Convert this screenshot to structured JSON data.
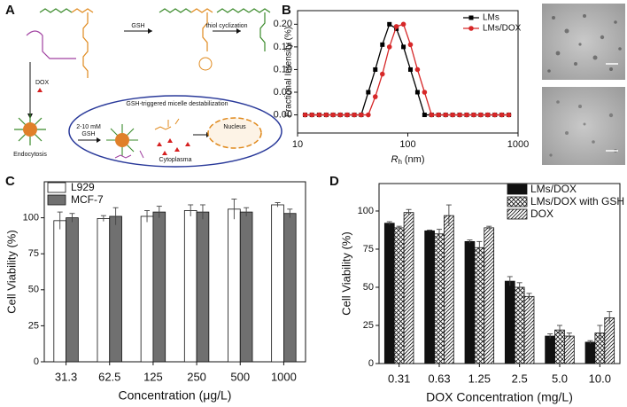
{
  "panel_labels": [
    "A",
    "B",
    "C",
    "D"
  ],
  "diagram": {
    "arrow_labels": [
      "GSH",
      "thiol cyclization"
    ],
    "drug": "DOX",
    "uptake": "Endocytosis",
    "oval_title": "GSH-triggered micelle destabilization",
    "trigger": [
      "2-10 mM",
      "GSH"
    ],
    "compartment": "Cytoplasma",
    "organelle": "Nucleus"
  },
  "chart_data": [
    {
      "type": "line",
      "x_label": "R",
      "x_label_subscript": "h",
      "x_label_unit": "(nm)",
      "y_label": "Fractional Intensity (%)",
      "x_scale": "log",
      "x": [
        11.7,
        13.5,
        15.7,
        18.2,
        21.0,
        24.4,
        28.2,
        32.7,
        37.8,
        43.8,
        50.7,
        58.8,
        68.1,
        78.8,
        91.3,
        105.7,
        122.4,
        141.8,
        164.2,
        190.1,
        220.2,
        255.0,
        295.3,
        342.0,
        396.1,
        458.7,
        531.2,
        615.1,
        712.4,
        825.0
      ],
      "xlim": [
        10,
        1000
      ],
      "xticks": [
        10,
        100,
        1000
      ],
      "ylim": [
        -0.04,
        0.23
      ],
      "yticks": [
        {
          "value": 0,
          "label": "0.00"
        },
        {
          "value": 0.05,
          "label": "0.05"
        },
        {
          "value": 0.1,
          "label": "0.10"
        },
        {
          "value": 0.15,
          "label": "0.15"
        },
        {
          "value": 0.2,
          "label": "0.20"
        }
      ],
      "legend": "upper right",
      "series": [
        {
          "name": "LMs",
          "color": "#000000",
          "marker": "square",
          "values": [
            0,
            0,
            0,
            0,
            0,
            0,
            0,
            0,
            0,
            0.05,
            0.1,
            0.155,
            0.2,
            0.19,
            0.15,
            0.1,
            0.05,
            0,
            0,
            0,
            0,
            0,
            0,
            0,
            0,
            0,
            0,
            0,
            0,
            0
          ]
        },
        {
          "name": "LMs/DOX",
          "color": "#d62728",
          "marker": "circle",
          "values": [
            0,
            0,
            0,
            0,
            0,
            0,
            0,
            0,
            0,
            0,
            0.04,
            0.09,
            0.15,
            0.195,
            0.2,
            0.155,
            0.1,
            0.05,
            0,
            0,
            0,
            0,
            0,
            0,
            0,
            0,
            0,
            0,
            0,
            0
          ]
        }
      ]
    },
    {
      "type": "bar",
      "x_label": "Concentration (μg/L)",
      "y_label": "Cell Viability (%)",
      "categories": [
        "31.3",
        "62.5",
        "125",
        "250",
        "500",
        "1000"
      ],
      "ylim": [
        0,
        125
      ],
      "yticks": [
        0,
        25,
        50,
        75,
        100
      ],
      "legend": "upper left",
      "series": [
        {
          "name": "L929",
          "color": "#ffffff",
          "pattern": "solid",
          "values": [
            98,
            99.5,
            101,
            105,
            106,
            109
          ],
          "errors": [
            6,
            2,
            4,
            4,
            7,
            1.5
          ]
        },
        {
          "name": "MCF-7",
          "color": "#707070",
          "pattern": "solid",
          "values": [
            100,
            101,
            104,
            104,
            104,
            103
          ],
          "errors": [
            3,
            6,
            4,
            5,
            3,
            3
          ]
        }
      ]
    },
    {
      "type": "bar",
      "x_label": "DOX Concentration (mg/L)",
      "y_label": "Cell Viability (%)",
      "categories": [
        "0.31",
        "0.63",
        "1.25",
        "2.5",
        "5.0",
        "10.0"
      ],
      "ylim": [
        0,
        118
      ],
      "yticks": [
        0,
        25,
        50,
        75,
        100
      ],
      "legend": "upper right",
      "series": [
        {
          "name": "LMs/DOX",
          "color": "#111111",
          "pattern": "solid",
          "values": [
            92,
            87,
            80,
            54,
            18,
            14
          ],
          "errors": [
            1,
            0.5,
            1,
            3,
            1.5,
            1
          ]
        },
        {
          "name": "LMs/DOX with GSH",
          "color": "#111111",
          "pattern": "crosshatch",
          "values": [
            89,
            85,
            76,
            50,
            22,
            20
          ],
          "errors": [
            1,
            3,
            4,
            3,
            3,
            5
          ]
        },
        {
          "name": "DOX",
          "color": "#111111",
          "pattern": "hatch",
          "values": [
            99,
            97,
            89,
            44,
            18,
            30
          ],
          "errors": [
            2,
            7,
            1,
            2,
            2,
            4
          ]
        }
      ]
    }
  ]
}
